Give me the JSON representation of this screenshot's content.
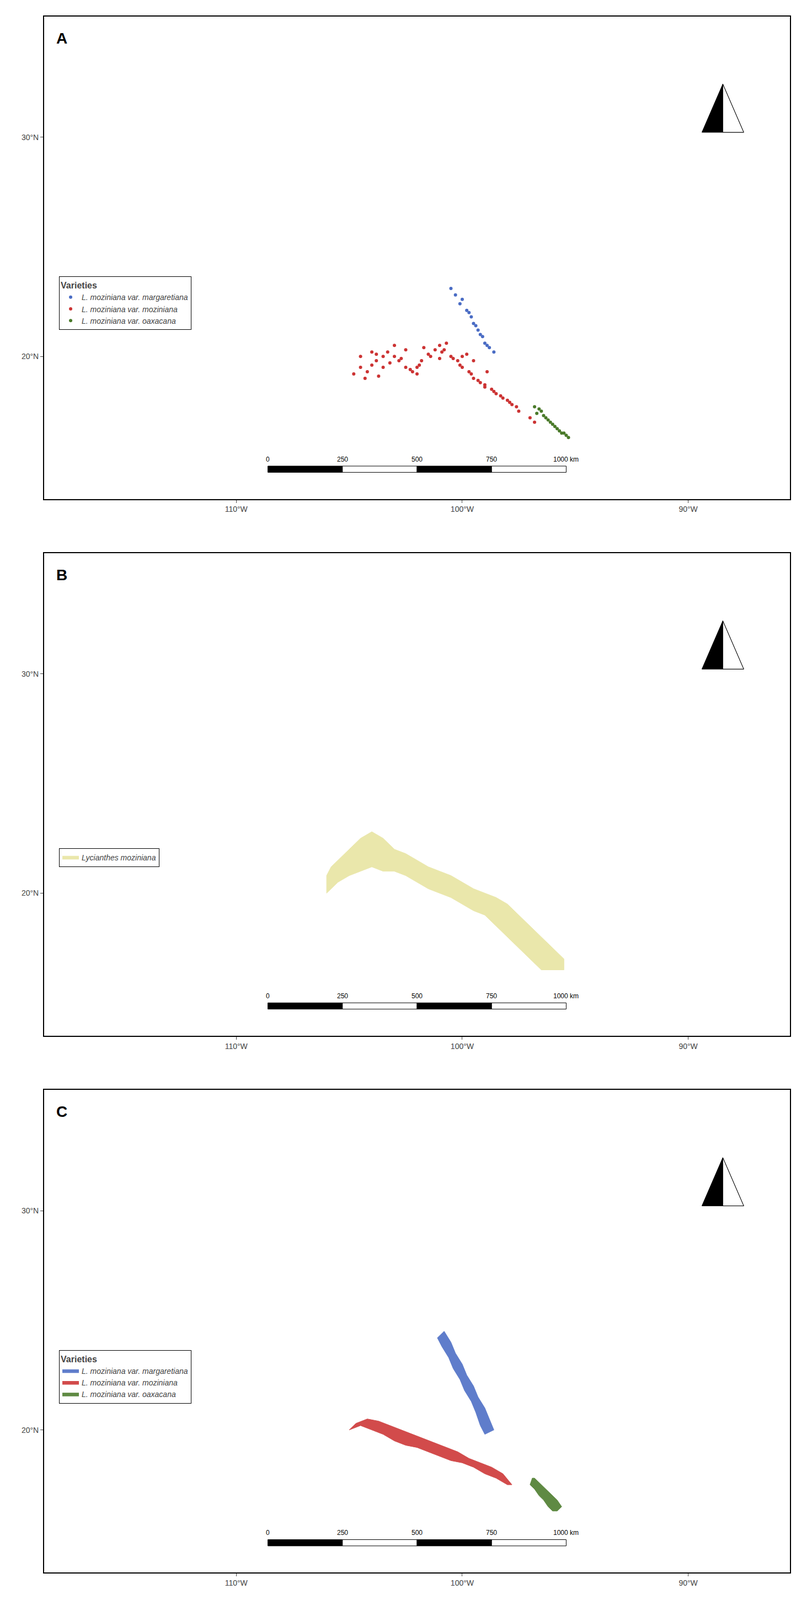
{
  "chart_data": [
    {
      "type": "scatter",
      "title": "A",
      "xlim": [
        -118.5,
        -85.5
      ],
      "ylim": [
        13.5,
        35.5
      ],
      "xticks": [
        {
          "value": -110,
          "label": "110°W"
        },
        {
          "value": -100,
          "label": "100°W"
        },
        {
          "value": -90,
          "label": "90°W"
        }
      ],
      "yticks": [
        {
          "value": 20,
          "label": "20°N"
        },
        {
          "value": 30,
          "label": "30°N"
        }
      ],
      "grid": false,
      "legend": "lower left",
      "legend_title": "Varieties",
      "scale_labels": [
        "0",
        "250",
        "500",
        "750",
        "1000 km"
      ],
      "series": [
        {
          "name": "L. moziniana var. margaretiana",
          "color": "#4a6cc4",
          "marker": "circle",
          "points": [
            [
              -100.3,
              22.8
            ],
            [
              -100.1,
              22.4
            ],
            [
              -99.8,
              22.1
            ],
            [
              -99.6,
              21.8
            ],
            [
              -99.5,
              21.5
            ],
            [
              -99.3,
              21.2
            ],
            [
              -99.1,
              20.9
            ],
            [
              -99.0,
              20.6
            ],
            [
              -98.8,
              20.4
            ],
            [
              -98.6,
              20.2
            ],
            [
              -100.5,
              23.1
            ],
            [
              -100.0,
              22.6
            ],
            [
              -99.7,
              22.0
            ],
            [
              -99.4,
              21.4
            ],
            [
              -99.2,
              21.0
            ],
            [
              -98.9,
              20.5
            ]
          ]
        },
        {
          "name": "L. moziniana var. moziniana",
          "color": "#cc3333",
          "marker": "circle",
          "points": [
            [
              -104.5,
              19.5
            ],
            [
              -104.2,
              19.3
            ],
            [
              -104.0,
              19.6
            ],
            [
              -103.8,
              19.8
            ],
            [
              -103.5,
              20.0
            ],
            [
              -103.3,
              20.2
            ],
            [
              -103.0,
              20.0
            ],
            [
              -102.8,
              19.8
            ],
            [
              -102.5,
              19.5
            ],
            [
              -102.2,
              19.3
            ],
            [
              -102.0,
              19.5
            ],
            [
              -101.8,
              19.8
            ],
            [
              -101.5,
              20.1
            ],
            [
              -101.2,
              20.3
            ],
            [
              -101.0,
              20.5
            ],
            [
              -100.8,
              20.3
            ],
            [
              -100.5,
              20.0
            ],
            [
              -100.2,
              19.8
            ],
            [
              -100.0,
              19.5
            ],
            [
              -99.7,
              19.3
            ],
            [
              -99.5,
              19.0
            ],
            [
              -99.2,
              18.8
            ],
            [
              -99.0,
              18.6
            ],
            [
              -98.7,
              18.5
            ],
            [
              -98.5,
              18.3
            ],
            [
              -98.2,
              18.1
            ],
            [
              -97.9,
              17.9
            ],
            [
              -97.6,
              17.7
            ],
            [
              -104.8,
              19.2
            ],
            [
              -104.3,
              19.0
            ],
            [
              -103.7,
              19.1
            ],
            [
              -103.2,
              19.7
            ],
            [
              -102.7,
              19.9
            ],
            [
              -102.3,
              19.4
            ],
            [
              -101.9,
              19.6
            ],
            [
              -101.4,
              20.0
            ],
            [
              -100.9,
              20.2
            ],
            [
              -100.4,
              19.9
            ],
            [
              -100.1,
              19.6
            ],
            [
              -99.6,
              19.2
            ],
            [
              -99.3,
              18.9
            ],
            [
              -99.0,
              18.7
            ],
            [
              -98.6,
              18.4
            ],
            [
              -98.3,
              18.2
            ],
            [
              -97.8,
              17.8
            ],
            [
              -103.0,
              20.5
            ],
            [
              -102.5,
              20.3
            ],
            [
              -101.7,
              20.4
            ],
            [
              -100.7,
              20.6
            ],
            [
              -99.8,
              20.1
            ],
            [
              -98.9,
              19.3
            ],
            [
              -104.0,
              20.2
            ],
            [
              -103.5,
              19.5
            ],
            [
              -102.0,
              19.2
            ],
            [
              -101.0,
              19.9
            ],
            [
              -100.0,
              20.0
            ],
            [
              -99.5,
              19.8
            ],
            [
              -104.5,
              20.0
            ],
            [
              -103.8,
              20.1
            ],
            [
              -98.0,
              18.0
            ],
            [
              -97.5,
              17.5
            ],
            [
              -97.0,
              17.2
            ],
            [
              -96.8,
              17.0
            ]
          ]
        },
        {
          "name": "L. moziniana var. oaxacana",
          "color": "#4a7a2a",
          "marker": "circle",
          "points": [
            [
              -96.5,
              17.5
            ],
            [
              -96.3,
              17.2
            ],
            [
              -96.1,
              17.0
            ],
            [
              -95.9,
              16.8
            ],
            [
              -95.7,
              16.6
            ],
            [
              -95.5,
              16.5
            ],
            [
              -96.4,
              17.3
            ],
            [
              -96.2,
              17.1
            ],
            [
              -96.0,
              16.9
            ],
            [
              -95.8,
              16.7
            ],
            [
              -95.6,
              16.5
            ],
            [
              -96.6,
              17.6
            ],
            [
              -96.7,
              17.4
            ],
            [
              -95.4,
              16.4
            ],
            [
              -96.8,
              17.7
            ],
            [
              -95.3,
              16.3
            ]
          ]
        }
      ]
    },
    {
      "type": "area",
      "title": "B",
      "xlim": [
        -118.5,
        -85.5
      ],
      "ylim": [
        13.5,
        35.5
      ],
      "xticks": [
        {
          "value": -110,
          "label": "110°W"
        },
        {
          "value": -100,
          "label": "100°W"
        },
        {
          "value": -90,
          "label": "90°W"
        }
      ],
      "yticks": [
        {
          "value": 20,
          "label": "20°N"
        },
        {
          "value": 30,
          "label": "30°N"
        }
      ],
      "grid": false,
      "legend": "lower left",
      "scale_labels": [
        "0",
        "250",
        "500",
        "750",
        "1000 km"
      ],
      "series": [
        {
          "name": "Lycianthes moziniana",
          "color": "#e8e4a0",
          "points": [
            [
              -105.5,
              21.5
            ],
            [
              -105.0,
              22.0
            ],
            [
              -104.5,
              22.5
            ],
            [
              -104.0,
              22.8
            ],
            [
              -103.5,
              22.5
            ],
            [
              -103.0,
              22.0
            ],
            [
              -102.5,
              21.8
            ],
            [
              -102.0,
              21.5
            ],
            [
              -101.5,
              21.2
            ],
            [
              -101.0,
              21.0
            ],
            [
              -100.5,
              20.8
            ],
            [
              -100.0,
              20.5
            ],
            [
              -99.5,
              20.2
            ],
            [
              -99.0,
              20.0
            ],
            [
              -98.5,
              19.8
            ],
            [
              -98.0,
              19.5
            ],
            [
              -97.5,
              19.0
            ],
            [
              -97.0,
              18.5
            ],
            [
              -96.5,
              18.0
            ],
            [
              -96.0,
              17.5
            ],
            [
              -95.5,
              17.0
            ],
            [
              -95.5,
              16.5
            ],
            [
              -96.0,
              16.5
            ],
            [
              -96.5,
              16.5
            ],
            [
              -97.0,
              17.0
            ],
            [
              -97.5,
              17.5
            ],
            [
              -98.0,
              18.0
            ],
            [
              -98.5,
              18.5
            ],
            [
              -99.0,
              19.0
            ],
            [
              -99.5,
              19.2
            ],
            [
              -100.0,
              19.5
            ],
            [
              -100.5,
              19.8
            ],
            [
              -101.0,
              20.0
            ],
            [
              -101.5,
              20.2
            ],
            [
              -102.0,
              20.5
            ],
            [
              -102.5,
              20.8
            ],
            [
              -103.0,
              21.0
            ],
            [
              -103.5,
              21.0
            ],
            [
              -104.0,
              21.2
            ],
            [
              -104.5,
              21.0
            ],
            [
              -105.0,
              20.8
            ],
            [
              -105.5,
              20.5
            ],
            [
              -106.0,
              20.0
            ],
            [
              -106.0,
              20.8
            ],
            [
              -105.8,
              21.2
            ],
            [
              -105.5,
              21.5
            ]
          ]
        }
      ]
    },
    {
      "type": "area",
      "title": "C",
      "xlim": [
        -118.5,
        -85.5
      ],
      "ylim": [
        13.5,
        35.5
      ],
      "xticks": [
        {
          "value": -110,
          "label": "110°W"
        },
        {
          "value": -100,
          "label": "100°W"
        },
        {
          "value": -90,
          "label": "90°W"
        }
      ],
      "yticks": [
        {
          "value": 20,
          "label": "20°N"
        },
        {
          "value": 30,
          "label": "30°N"
        }
      ],
      "grid": false,
      "legend": "lower left",
      "legend_title": "Varieties",
      "scale_labels": [
        "0",
        "250",
        "500",
        "750",
        "1000 km"
      ],
      "series": [
        {
          "name": "L. moziniana var. margaretiana",
          "color": "#4a6cc4",
          "points": [
            [
              -100.8,
              24.5
            ],
            [
              -100.5,
              24.0
            ],
            [
              -100.3,
              23.5
            ],
            [
              -100.0,
              23.0
            ],
            [
              -99.8,
              22.5
            ],
            [
              -99.5,
              22.0
            ],
            [
              -99.3,
              21.5
            ],
            [
              -99.0,
              21.0
            ],
            [
              -98.8,
              20.5
            ],
            [
              -98.6,
              20.0
            ],
            [
              -99.0,
              19.8
            ],
            [
              -99.2,
              20.2
            ],
            [
              -99.4,
              20.8
            ],
            [
              -99.6,
              21.3
            ],
            [
              -99.9,
              21.8
            ],
            [
              -100.1,
              22.3
            ],
            [
              -100.4,
              22.8
            ],
            [
              -100.6,
              23.3
            ],
            [
              -100.9,
              23.8
            ],
            [
              -101.1,
              24.2
            ],
            [
              -100.8,
              24.5
            ]
          ]
        },
        {
          "name": "L. moziniana var. moziniana",
          "color": "#cc3333",
          "points": [
            [
              -105.0,
              20.0
            ],
            [
              -104.5,
              20.2
            ],
            [
              -104.0,
              20.0
            ],
            [
              -103.5,
              19.8
            ],
            [
              -103.0,
              19.5
            ],
            [
              -102.5,
              19.3
            ],
            [
              -102.0,
              19.2
            ],
            [
              -101.5,
              19.0
            ],
            [
              -101.0,
              18.8
            ],
            [
              -100.5,
              18.6
            ],
            [
              -100.0,
              18.5
            ],
            [
              -99.5,
              18.3
            ],
            [
              -99.0,
              18.0
            ],
            [
              -98.5,
              17.8
            ],
            [
              -98.0,
              17.5
            ],
            [
              -97.8,
              17.5
            ],
            [
              -98.2,
              18.0
            ],
            [
              -98.7,
              18.3
            ],
            [
              -99.2,
              18.5
            ],
            [
              -99.7,
              18.7
            ],
            [
              -100.2,
              19.0
            ],
            [
              -100.7,
              19.2
            ],
            [
              -101.2,
              19.4
            ],
            [
              -101.7,
              19.6
            ],
            [
              -102.2,
              19.8
            ],
            [
              -102.7,
              20.0
            ],
            [
              -103.2,
              20.2
            ],
            [
              -103.7,
              20.4
            ],
            [
              -104.2,
              20.5
            ],
            [
              -104.7,
              20.3
            ],
            [
              -105.0,
              20.0
            ]
          ]
        },
        {
          "name": "L. moziniana var. oaxacana",
          "color": "#4a7a2a",
          "points": [
            [
              -96.8,
              17.8
            ],
            [
              -96.5,
              17.5
            ],
            [
              -96.2,
              17.2
            ],
            [
              -96.0,
              17.0
            ],
            [
              -95.8,
              16.8
            ],
            [
              -95.6,
              16.5
            ],
            [
              -95.8,
              16.3
            ],
            [
              -96.0,
              16.3
            ],
            [
              -96.2,
              16.5
            ],
            [
              -96.4,
              16.8
            ],
            [
              -96.6,
              17.0
            ],
            [
              -96.8,
              17.3
            ],
            [
              -97.0,
              17.5
            ],
            [
              -96.9,
              17.8
            ],
            [
              -96.8,
              17.8
            ]
          ]
        }
      ]
    }
  ]
}
